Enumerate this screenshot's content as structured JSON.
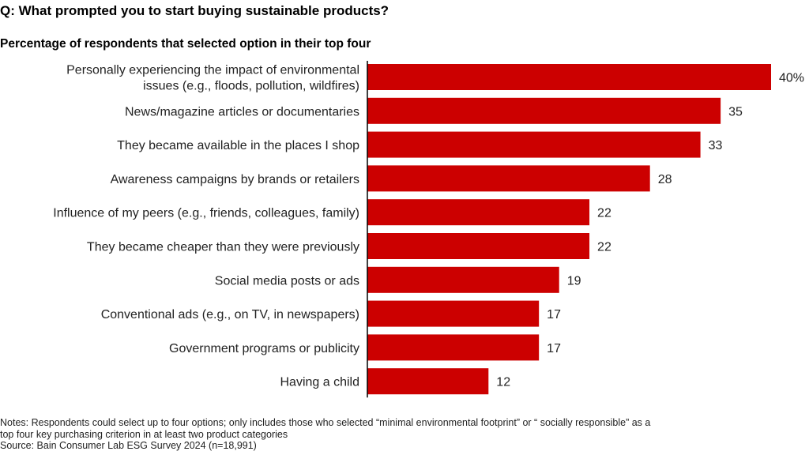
{
  "question": "Q: What prompted you to start buying sustainable products?",
  "subtitle": "Percentage of respondents that selected option in their top four",
  "notes_line1": "Notes: Respondents could select up to four options; only includes those who selected “minimal environmental footprint” or “ socially responsible” as a",
  "notes_line2": "top four key purchasing criterion in at least two product categories",
  "source": "Source: Bain Consumer Lab ESG Survey 2024 (n=18,991)",
  "colors": {
    "bar": "#cc0000",
    "axis": "#000000"
  },
  "chart_data": {
    "type": "bar",
    "orientation": "horizontal",
    "categories": [
      [
        "Personally experiencing the impact of environmental",
        "issues (e.g., floods, pollution, wildfires)"
      ],
      [
        "News/magazine articles or documentaries"
      ],
      [
        "They became available in the places I shop"
      ],
      [
        "Awareness campaigns by brands or retailers"
      ],
      [
        "Influence of my peers (e.g., friends, colleagues, family)"
      ],
      [
        "They became cheaper than they were previously"
      ],
      [
        "Social media posts or ads"
      ],
      [
        "Conventional ads (e.g., on TV, in newspapers)"
      ],
      [
        "Government programs or publicity"
      ],
      [
        "Having a child"
      ]
    ],
    "values": [
      40,
      35,
      33,
      28,
      22,
      22,
      19,
      17,
      17,
      12
    ],
    "value_labels": [
      "40%",
      "35",
      "33",
      "28",
      "22",
      "22",
      "19",
      "17",
      "17",
      "12"
    ],
    "xlim": [
      0,
      40
    ],
    "grid": false,
    "legend": "none"
  }
}
